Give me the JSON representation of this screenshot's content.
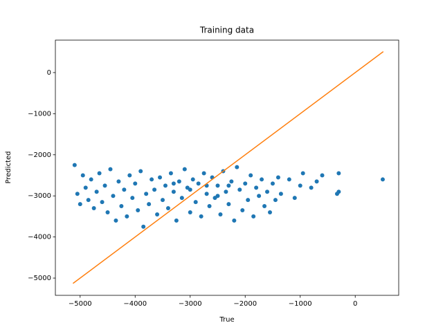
{
  "chart_data": {
    "type": "scatter",
    "title": "Training data",
    "x_label": "True",
    "y_label": "Predicted",
    "xlim": [
      -5450,
      790
    ],
    "ylim": [
      -5420,
      790
    ],
    "xticks": [
      {
        "value": -5000,
        "label": "−5000"
      },
      {
        "value": -4000,
        "label": "−4000"
      },
      {
        "value": -3000,
        "label": "−3000"
      },
      {
        "value": -2000,
        "label": "−2000"
      },
      {
        "value": -1000,
        "label": "−1000"
      },
      0
    ],
    "yticks": [
      {
        "value": -5000,
        "label": "−5000"
      },
      {
        "value": -4000,
        "label": "−4000"
      },
      {
        "value": -3000,
        "label": "−3000"
      },
      {
        "value": -2000,
        "label": "−2000"
      },
      {
        "value": -1000,
        "label": "−1000"
      },
      0
    ],
    "series": [
      {
        "type": "scatter",
        "color": "#1f77b4",
        "x": [
          -5100,
          -5050,
          -5000,
          -4950,
          -4900,
          -4850,
          -4800,
          -4750,
          -4700,
          -4650,
          -4600,
          -4550,
          -4500,
          -4450,
          -4400,
          -4350,
          -4300,
          -4250,
          -4200,
          -4150,
          -4100,
          -4050,
          -4000,
          -3950,
          -3900,
          -3850,
          -3800,
          -3750,
          -3700,
          -3650,
          -3600,
          -3550,
          -3500,
          -3450,
          -3400,
          -3350,
          -3300,
          -3250,
          -3200,
          -3150,
          -3100,
          -3050,
          -3000,
          -2950,
          -2900,
          -2850,
          -2800,
          -2750,
          -2700,
          -2650,
          -2600,
          -2550,
          -2500,
          -2450,
          -2400,
          -2350,
          -2300,
          -2250,
          -2200,
          -2150,
          -2100,
          -2050,
          -2000,
          -1950,
          -1900,
          -1850,
          -1800,
          -1750,
          -1700,
          -1650,
          -1600,
          -1550,
          -1500,
          -1450,
          -1400,
          -1350,
          -1200,
          -1100,
          -1000,
          -950,
          -800,
          -700,
          -600,
          -300,
          -330,
          -300,
          500,
          -3000,
          -2700,
          -2300,
          -3300,
          -2500
        ],
        "values": [
          -2250,
          -2950,
          -3200,
          -2500,
          -2800,
          -3100,
          -2600,
          -3300,
          -2900,
          -2450,
          -3150,
          -2750,
          -3400,
          -2350,
          -3000,
          -3600,
          -2650,
          -3250,
          -2850,
          -3500,
          -2500,
          -3050,
          -2700,
          -3350,
          -2400,
          -3750,
          -2950,
          -3200,
          -2600,
          -2850,
          -3450,
          -2550,
          -3100,
          -2750,
          -3300,
          -2450,
          -2900,
          -3600,
          -2650,
          -3050,
          -2350,
          -2800,
          -3400,
          -2600,
          -3150,
          -2700,
          -3500,
          -2450,
          -2950,
          -3250,
          -2550,
          -3050,
          -2750,
          -3450,
          -2400,
          -2900,
          -3200,
          -2650,
          -3600,
          -2300,
          -2850,
          -3350,
          -2700,
          -3100,
          -2500,
          -3500,
          -2800,
          -3000,
          -2600,
          -3250,
          -2900,
          -3400,
          -2700,
          -3100,
          -2550,
          -2950,
          -2600,
          -3050,
          -2750,
          -2450,
          -2800,
          -2650,
          -2500,
          -2900,
          -2950,
          -2450,
          -2600,
          -2850,
          -2750,
          -2750,
          -2700,
          -3000
        ]
      },
      {
        "type": "line",
        "color": "#ff7f0e",
        "x": [
          -5130,
          510
        ],
        "values": [
          -5130,
          510
        ]
      }
    ]
  }
}
